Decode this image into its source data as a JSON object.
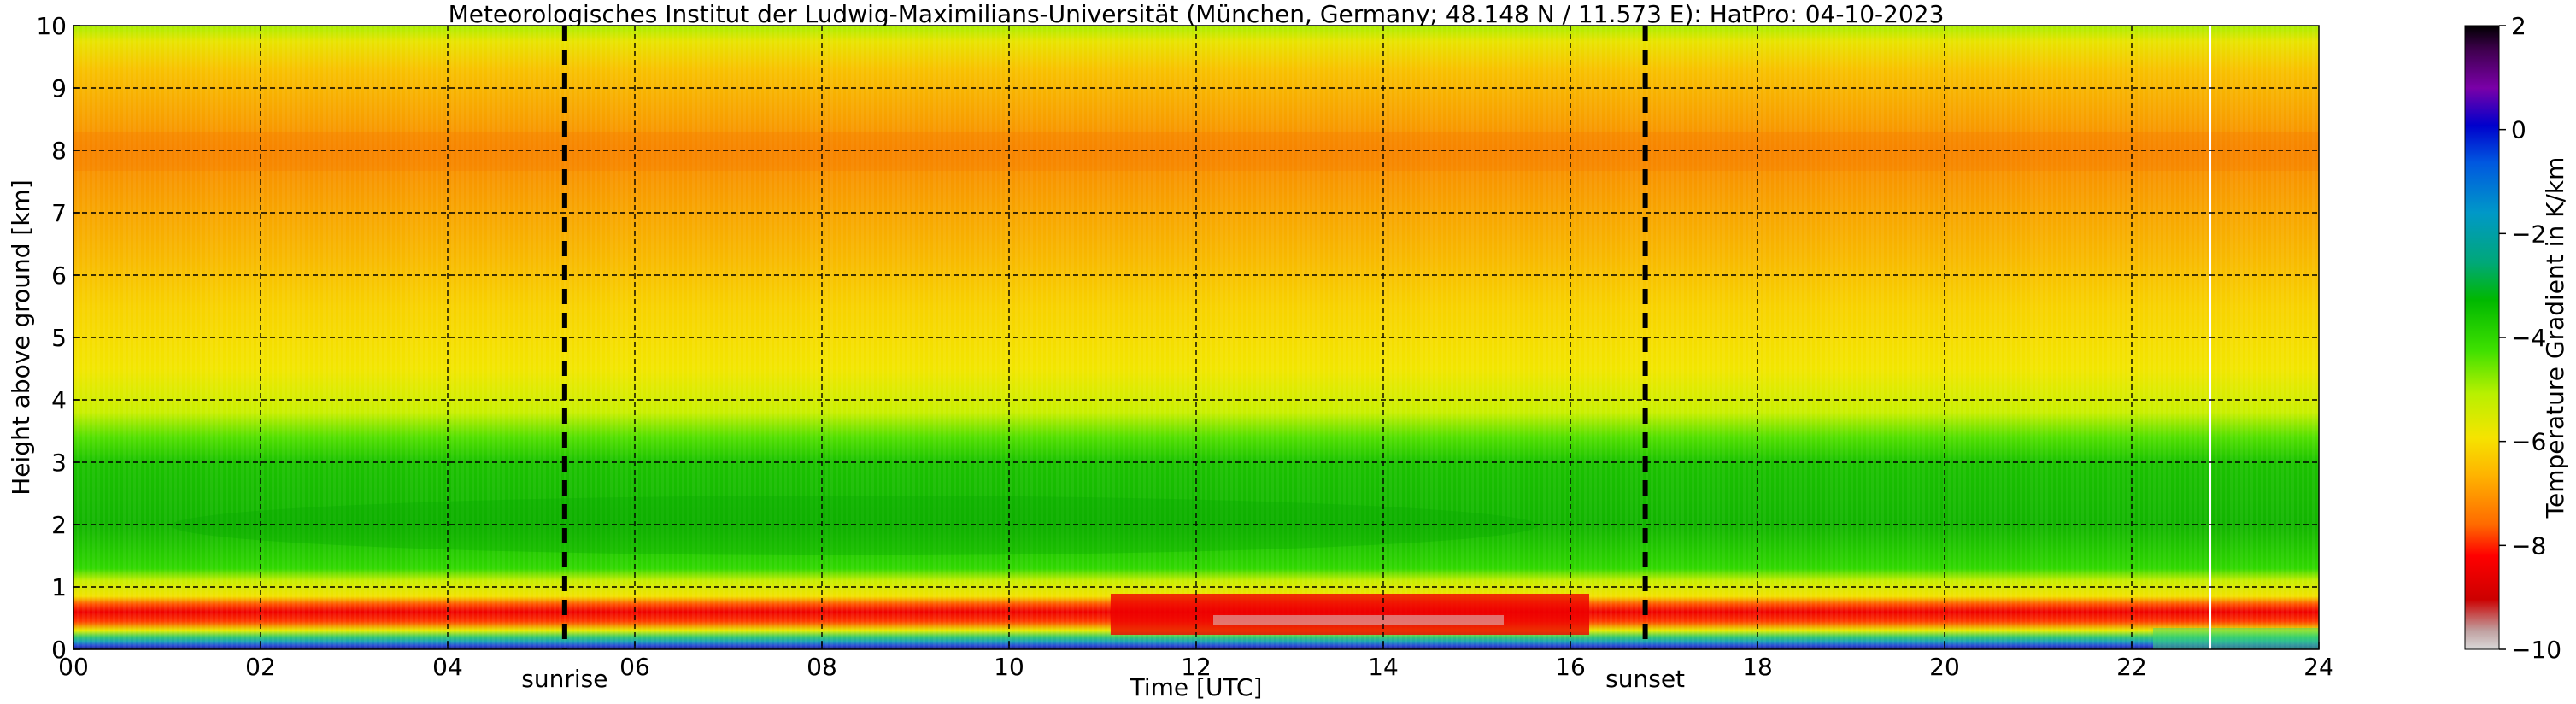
{
  "chart_data": {
    "type": "heatmap",
    "title": "Meteorologisches Institut der Ludwig-Maximilians-Universität (München, Germany; 48.148 N / 11.573 E):    HatPro: 04-10-2023",
    "xlabel": "Time [UTC]",
    "ylabel": "Height above ground [km]",
    "xlim": [
      0,
      24
    ],
    "ylim": [
      0,
      10
    ],
    "x_ticks": [
      "00",
      "02",
      "04",
      "06",
      "08",
      "10",
      "12",
      "14",
      "16",
      "18",
      "20",
      "22",
      "24"
    ],
    "y_ticks": [
      "0",
      "1",
      "2",
      "3",
      "4",
      "5",
      "6",
      "7",
      "8",
      "9",
      "10"
    ],
    "grid": true,
    "events": [
      {
        "label": "sunrise",
        "time": 5.25
      },
      {
        "label": "sunset",
        "time": 16.8
      }
    ],
    "colorbar": {
      "label": "Temperature Gradient in K/km",
      "range": [
        -10,
        2
      ],
      "ticks": [
        "2",
        "0",
        "−2",
        "−4",
        "−6",
        "−8",
        "−10"
      ]
    },
    "profile": [
      {
        "height_km": 0.05,
        "gradient": 1.5
      },
      {
        "height_km": 0.15,
        "gradient": -2
      },
      {
        "height_km": 0.3,
        "gradient": -5
      },
      {
        "height_km": 0.5,
        "gradient": -8
      },
      {
        "height_km": 0.8,
        "gradient": -6.5
      },
      {
        "height_km": 1.2,
        "gradient": -5.5
      },
      {
        "height_km": 2.5,
        "gradient": -4.5
      },
      {
        "height_km": 3.5,
        "gradient": -5.5
      },
      {
        "height_km": 5,
        "gradient": -6.3
      },
      {
        "height_km": 6.5,
        "gradient": -7
      },
      {
        "height_km": 8,
        "gradient": -7.5
      },
      {
        "height_km": 9.5,
        "gradient": -6.8
      }
    ]
  }
}
